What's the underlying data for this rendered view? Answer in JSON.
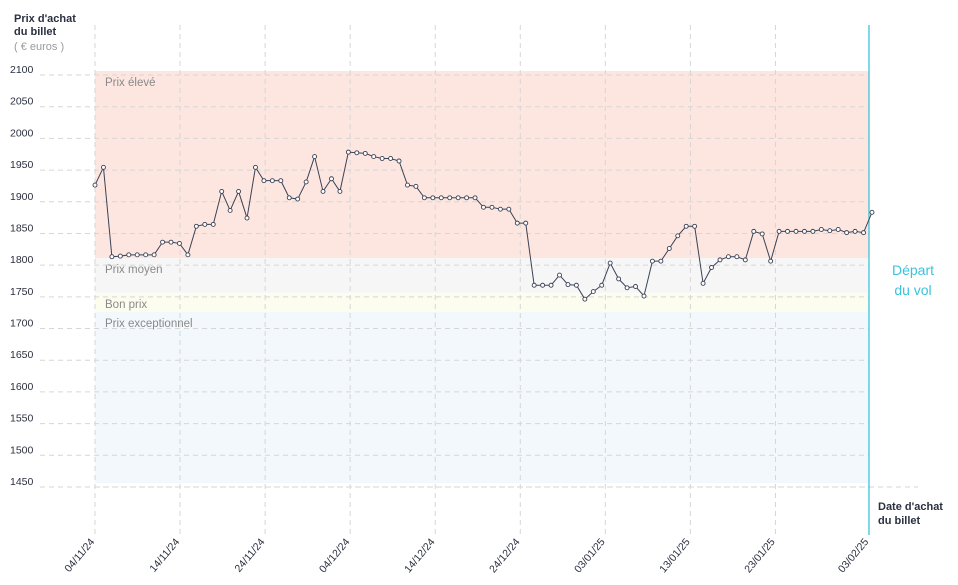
{
  "chart_data": {
    "type": "line",
    "y_label": [
      "Prix d'achat",
      "du billet"
    ],
    "y_unit": "( € euros )",
    "x_label": [
      "Date d'achat",
      "du billet"
    ],
    "departure_label": [
      "Départ",
      "du vol"
    ],
    "xticks": [
      "04/11/24",
      "14/11/24",
      "24/11/24",
      "04/12/24",
      "14/12/24",
      "24/12/24",
      "03/01/25",
      "13/01/25",
      "23/01/25",
      "03/02/25"
    ],
    "ylim": [
      1450,
      2100
    ],
    "yticks": [
      1450,
      1500,
      1550,
      1600,
      1650,
      1700,
      1750,
      1800,
      1850,
      1900,
      1950,
      2000,
      2050,
      2100
    ],
    "grid": true,
    "line_color": "#3a4256",
    "departure_color": "#3bc3dc",
    "bands": [
      {
        "name": "Prix élevé",
        "from": 1805,
        "to": 2100,
        "color": "#fde6df"
      },
      {
        "name": "Prix moyen",
        "from": 1750,
        "to": 1805,
        "color": "#f6f6f6"
      },
      {
        "name": "Bon prix",
        "from": 1720,
        "to": 1750,
        "color": "#fcfcef"
      },
      {
        "name": "Prix exceptionnel",
        "from": 1450,
        "to": 1720,
        "color": "#f2f8fc"
      }
    ],
    "values": [
      1920,
      1948,
      1807,
      1808,
      1810,
      1810,
      1810,
      1810,
      1830,
      1830,
      1828,
      1810,
      1855,
      1858,
      1858,
      1910,
      1880,
      1910,
      1868,
      1948,
      1927,
      1927,
      1927,
      1900,
      1898,
      1925,
      1965,
      1910,
      1930,
      1910,
      1972,
      1971,
      1970,
      1965,
      1962,
      1962,
      1958,
      1920,
      1918,
      1900,
      1900,
      1900,
      1900,
      1900,
      1900,
      1900,
      1885,
      1885,
      1882,
      1882,
      1860,
      1860,
      1762,
      1762,
      1762,
      1778,
      1763,
      1762,
      1740,
      1752,
      1762,
      1797,
      1772,
      1758,
      1760,
      1745,
      1800,
      1800,
      1820,
      1840,
      1855,
      1855,
      1765,
      1790,
      1802,
      1807,
      1807,
      1802,
      1847,
      1843,
      1800,
      1847,
      1847,
      1847,
      1847,
      1847,
      1850,
      1848,
      1850,
      1845,
      1847,
      1845,
      1877
    ]
  }
}
